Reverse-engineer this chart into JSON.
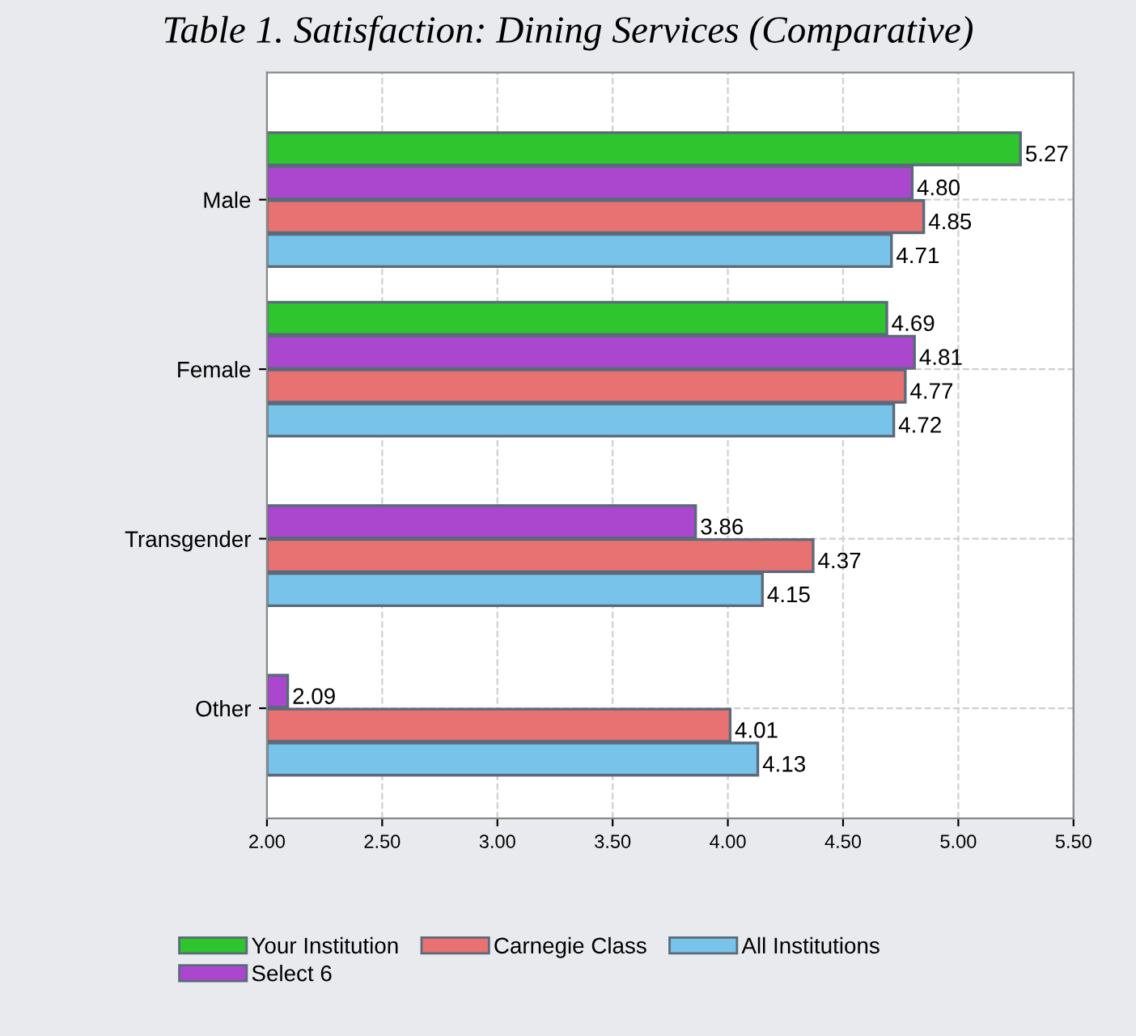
{
  "chart_data": {
    "type": "bar",
    "orientation": "horizontal",
    "title": "Table 1. Satisfaction: Dining Services (Comparative)",
    "categories": [
      "Male",
      "Female",
      "Transgender",
      "Other"
    ],
    "series": [
      {
        "name": "Your Institution",
        "color": "#2ec52e",
        "values": [
          5.27,
          4.69,
          null,
          null
        ],
        "value_labels": [
          "5.27",
          "4.69",
          null,
          null
        ]
      },
      {
        "name": "Select 6",
        "color": "#ab47cf",
        "values": [
          4.8,
          4.81,
          3.86,
          2.09
        ],
        "value_labels": [
          "4.80",
          "4.81",
          "3.86",
          "2.09"
        ]
      },
      {
        "name": "Carnegie Class",
        "color": "#e87272",
        "values": [
          4.85,
          4.77,
          4.37,
          4.01
        ],
        "value_labels": [
          "4.85",
          "4.77",
          "4.37",
          "4.01"
        ]
      },
      {
        "name": "All Institutions",
        "color": "#77c3ea",
        "values": [
          4.71,
          4.72,
          4.15,
          4.13
        ],
        "value_labels": [
          "4.71",
          "4.72",
          "4.15",
          "4.13"
        ]
      }
    ],
    "xlim": [
      2.0,
      5.5
    ],
    "xticks": [
      {
        "value": 2.0,
        "label": "2.00"
      },
      {
        "value": 2.5,
        "label": "2.50"
      },
      {
        "value": 3.0,
        "label": "3.00"
      },
      {
        "value": 3.5,
        "label": "3.50"
      },
      {
        "value": 4.0,
        "label": "4.00"
      },
      {
        "value": 4.5,
        "label": "4.50"
      },
      {
        "value": 5.0,
        "label": "5.00"
      },
      {
        "value": 5.5,
        "label": "5.50"
      }
    ],
    "grid": true,
    "legend": "bottom"
  }
}
